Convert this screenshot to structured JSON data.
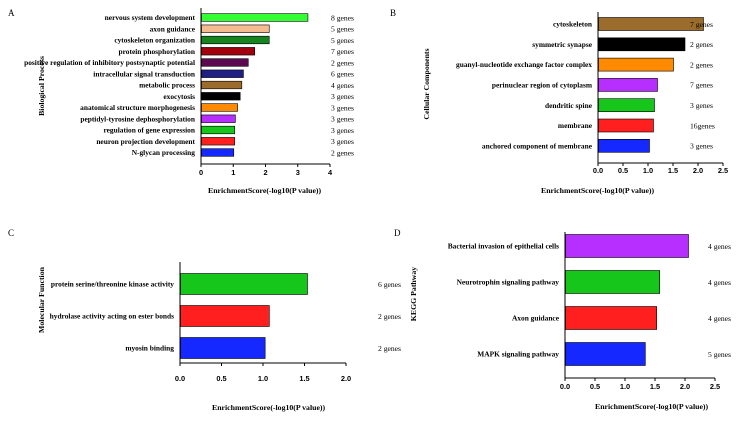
{
  "chart_data": [
    {
      "panel": "A",
      "type": "bar",
      "orientation": "horizontal",
      "ylabel": "Biological Process",
      "xlabel": "EnrichmentScore(-log10(P value))",
      "xlim": [
        0,
        4
      ],
      "xticks": [
        "0",
        "1",
        "2",
        "3",
        "4"
      ],
      "categories": [
        "nervous system development",
        "axon guidance",
        "cytoskeleton organization",
        "protein phosphorylation",
        "positive regulation of inhibitory postsynaptic potential",
        "intracellular signal transduction",
        "metabolic process",
        "exocytosis",
        "anatomical structure morphogenesis",
        "peptidyl-tyrosine dephosphorylation",
        "regulation of gene expression",
        "neuron projection development",
        "N-glycan processing"
      ],
      "values": [
        3.3,
        2.1,
        2.1,
        1.65,
        1.45,
        1.3,
        1.25,
        1.2,
        1.12,
        1.05,
        1.03,
        1.03,
        1.0
      ],
      "gene_counts": [
        "8 genes",
        "5 genes",
        "5 genes",
        "7 genes",
        "2 genes",
        "6 genes",
        "4 genes",
        "3 genes",
        "3 genes",
        "3 genes",
        "3 genes",
        "3 genes",
        "2 genes"
      ],
      "colors": [
        "#33ff33",
        "#f4bc8f",
        "#17841f",
        "#a3000e",
        "#5c0a4f",
        "#202084",
        "#9c6c2c",
        "#000000",
        "#ff8a00",
        "#b72fff",
        "#16c61a",
        "#ff1f1f",
        "#1428ff"
      ]
    },
    {
      "panel": "B",
      "type": "bar",
      "orientation": "horizontal",
      "ylabel": "Cellular Components",
      "xlabel": "EnrichmentScore(-log10(P value))",
      "xlim": [
        0,
        2.5
      ],
      "xticks": [
        "0.0",
        "0.5",
        "1.0",
        "1.5",
        "2.0",
        "2.5"
      ],
      "categories": [
        "cytoskeleton",
        "symmetric synapse",
        "guanyl-nucleotide exchange factor complex",
        "perinuclear region of cytoplasm",
        "dendritic spine",
        "membrane",
        "anchored component of membrane"
      ],
      "values": [
        2.1,
        1.73,
        1.5,
        1.18,
        1.12,
        1.1,
        1.02
      ],
      "gene_counts": [
        "7 genes",
        "2 genes",
        "2 genes",
        "7 genes",
        "3 genes",
        "16genes",
        "3 genes"
      ],
      "colors": [
        "#9c6c2c",
        "#000000",
        "#ff8a00",
        "#b72fff",
        "#16c61a",
        "#ff1f1f",
        "#1428ff"
      ]
    },
    {
      "panel": "C",
      "type": "bar",
      "orientation": "horizontal",
      "ylabel": "Molecular Function",
      "xlabel": "EnrichmentScore(-log10(P value))",
      "xlim": [
        0,
        2.0
      ],
      "xticks": [
        "0.0",
        "0.5",
        "1.0",
        "1.5",
        "2.0"
      ],
      "categories": [
        "protein serine/threonine kinase activity",
        "hydrolase activity acting on ester bonds",
        "myosin binding"
      ],
      "values": [
        1.53,
        1.07,
        1.02
      ],
      "gene_counts": [
        "6 genes",
        "2 genes",
        "2 genes"
      ],
      "colors": [
        "#16c61a",
        "#ff1f1f",
        "#1428ff"
      ]
    },
    {
      "panel": "D",
      "type": "bar",
      "orientation": "horizontal",
      "ylabel": "KEGG Pathway",
      "xlabel": "EnrichmentScore(-log10(P value))",
      "xlim": [
        0,
        2.5
      ],
      "xticks": [
        "0.0",
        "0.5",
        "1.0",
        "1.5",
        "2.0",
        "2.5"
      ],
      "categories": [
        "Bacterial invasion of epithelial cells",
        "Neurotrophin signaling pathway",
        "Axon guidance",
        "MAPK signaling pathway"
      ],
      "values": [
        2.05,
        1.57,
        1.52,
        1.33
      ],
      "gene_counts": [
        "4 genes",
        "4 genes",
        "4 genes",
        "5 genes"
      ],
      "colors": [
        "#b72fff",
        "#16c61a",
        "#ff1f1f",
        "#1428ff"
      ]
    }
  ]
}
